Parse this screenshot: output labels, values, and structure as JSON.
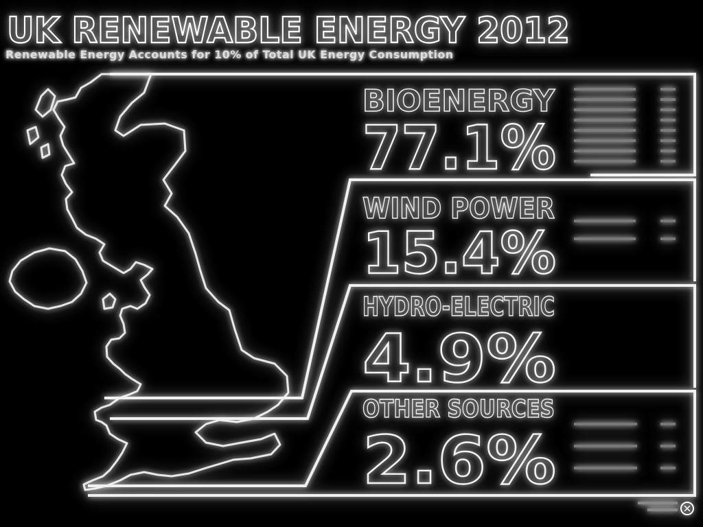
{
  "header": {
    "title": "UK RENEWABLE ENERGY 2012",
    "subtitle": "Renewable Energy Accounts for 10% of Total UK Energy Consumption"
  },
  "chart_data": {
    "type": "table",
    "title": "UK RENEWABLE ENERGY 2012",
    "subtitle": "Renewable Energy Accounts for 10% of Total UK Energy Consumption",
    "categories": [
      "BIOENERGY",
      "WIND POWER",
      "HYDRO-ELECTRIC",
      "OTHER SOURCES"
    ],
    "values": [
      77.1,
      15.4,
      4.9,
      2.6
    ],
    "value_labels": [
      "77.1%",
      "15.4%",
      "4.9%",
      "2.6%"
    ],
    "unit": "%"
  },
  "footer": {
    "credit": ""
  },
  "colors": {
    "background": "#000000",
    "foreground": "#ffffff",
    "glow": "#ffffff"
  },
  "icons": [
    "uk-map-outline",
    "publisher-logo-icon"
  ]
}
